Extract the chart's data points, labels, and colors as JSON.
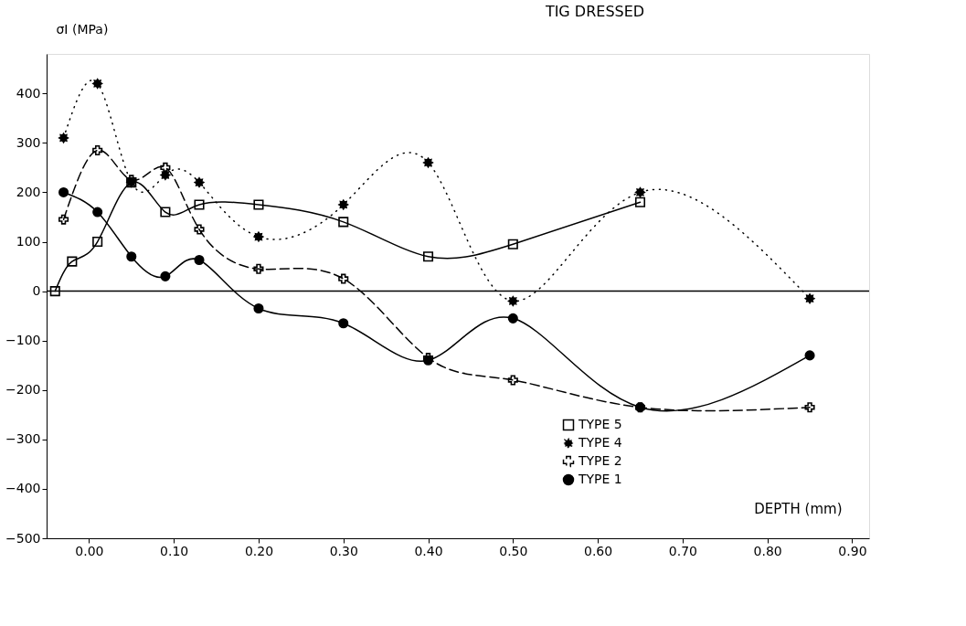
{
  "chart_data": {
    "type": "line",
    "title": "TIG DRESSED",
    "xlabel": "DEPTH (mm)",
    "ylabel": "σI (MPa)",
    "xlim": [
      -0.05,
      0.92
    ],
    "ylim": [
      -500,
      480
    ],
    "xticks": [
      {
        "value": 0,
        "label": "0.00"
      },
      {
        "value": 0.1,
        "label": "0.10"
      },
      {
        "value": 0.2,
        "label": "0.20"
      },
      {
        "value": 0.3,
        "label": "0.30"
      },
      {
        "value": 0.4,
        "label": "0.40"
      },
      {
        "value": 0.5,
        "label": "0.50"
      },
      {
        "value": 0.6,
        "label": "0.60"
      },
      {
        "value": 0.7,
        "label": "0.70"
      },
      {
        "value": 0.8,
        "label": "0.80"
      },
      {
        "value": 0.9,
        "label": "0.90"
      }
    ],
    "yticks": [
      -500,
      -400,
      -300,
      -200,
      -100,
      0,
      100,
      200,
      300,
      400
    ],
    "grid": false,
    "legend": "bottom right",
    "ref_lines": [
      {
        "axis": "y",
        "value": 0,
        "color": "#000000",
        "line_style": "solid"
      }
    ],
    "series": [
      {
        "name": "TYPE 5",
        "color": "#000000",
        "marker": "square",
        "line_style": "solid",
        "x": [
          -0.04,
          -0.02,
          0.01,
          0.05,
          0.09,
          0.13,
          0.2,
          0.3,
          0.4,
          0.5,
          0.65
        ],
        "values": [
          0,
          60,
          100,
          220,
          160,
          175,
          175,
          140,
          70,
          95,
          180
        ]
      },
      {
        "name": "TYPE 4",
        "color": "#000000",
        "marker": "star",
        "line_style": "dotted",
        "x": [
          -0.03,
          0.01,
          0.05,
          0.09,
          0.13,
          0.2,
          0.3,
          0.4,
          0.5,
          0.65,
          0.85
        ],
        "values": [
          310,
          420,
          220,
          235,
          220,
          110,
          175,
          260,
          -20,
          200,
          -15
        ]
      },
      {
        "name": "TYPE 2",
        "color": "#000000",
        "marker": "cross",
        "line_style": "dashed",
        "x": [
          -0.03,
          0.01,
          0.05,
          0.09,
          0.13,
          0.2,
          0.3,
          0.4,
          0.5,
          0.65,
          0.85
        ],
        "values": [
          145,
          285,
          225,
          250,
          125,
          45,
          25,
          -135,
          -180,
          -235,
          -235
        ]
      },
      {
        "name": "TYPE 1",
        "color": "#000000",
        "marker": "circle",
        "line_style": "solid",
        "x": [
          -0.03,
          0.01,
          0.05,
          0.09,
          0.13,
          0.2,
          0.3,
          0.4,
          0.5,
          0.65,
          0.85
        ],
        "values": [
          200,
          160,
          70,
          30,
          63,
          -35,
          -65,
          -140,
          -55,
          -235,
          -130
        ]
      }
    ]
  }
}
